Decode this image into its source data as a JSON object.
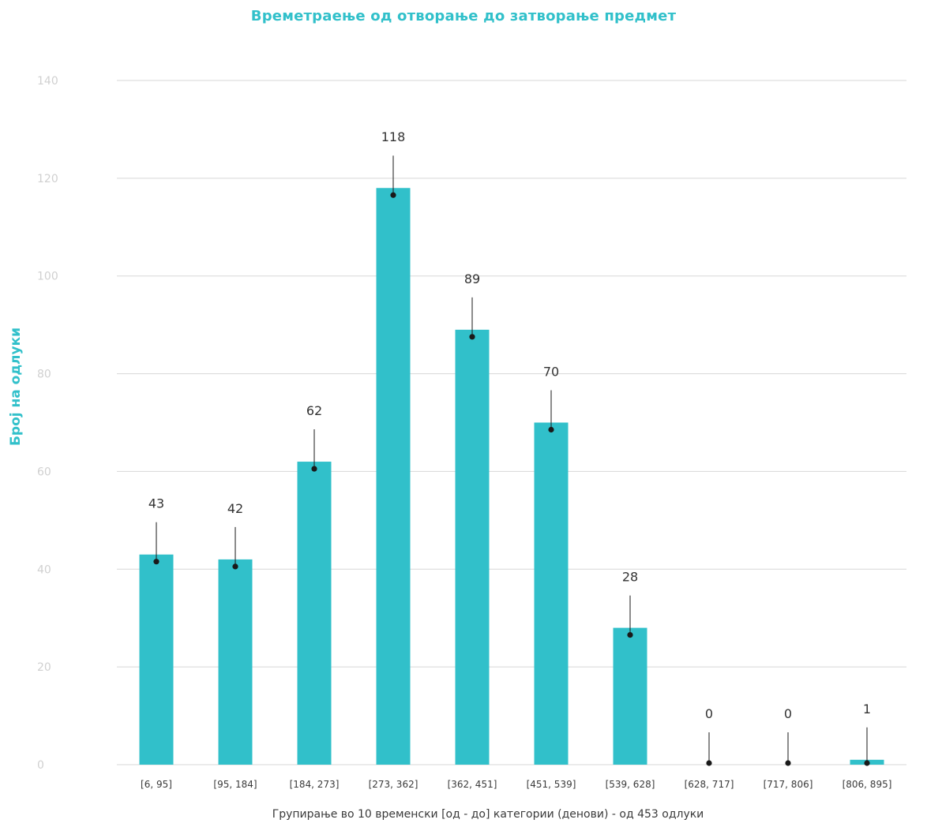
{
  "chart_data": {
    "type": "bar",
    "title": "Времетраење од отворање до затворање предмет",
    "ylabel": "Број на одлуки",
    "xlabel": "Групирање во 10 временски [од - до] категории (денови) - од 453 одлуки",
    "categories": [
      "[6, 95]",
      "[95, 184]",
      "[184, 273]",
      "[273, 362]",
      "[362, 451]",
      "[451, 539]",
      "[539, 628]",
      "[628, 717]",
      "[717, 806]",
      "[806, 895]"
    ],
    "values": [
      43,
      42,
      62,
      118,
      89,
      70,
      28,
      0,
      0,
      1
    ],
    "ylim": [
      0,
      140
    ],
    "yticks": [
      0,
      20,
      40,
      60,
      80,
      100,
      120,
      140
    ],
    "grid": true,
    "legend": "none",
    "colors": {
      "bar": "#31c0ca",
      "title": "#31c0ca",
      "marker": "#1a1a1a"
    }
  }
}
